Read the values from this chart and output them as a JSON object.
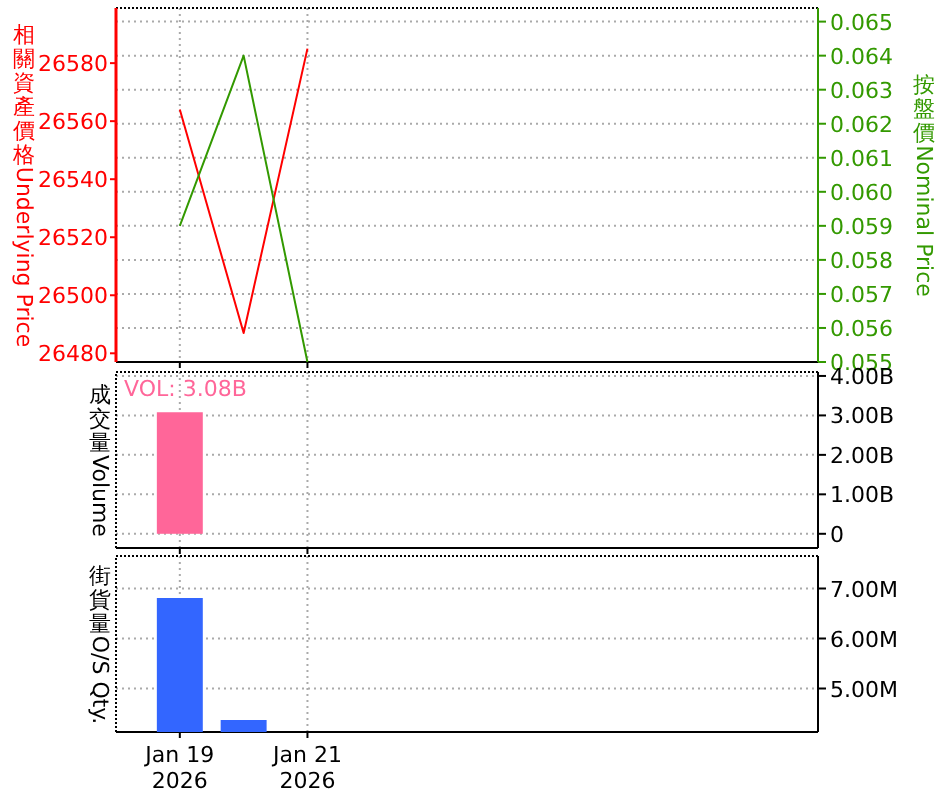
{
  "chart_data": [
    {
      "type": "line",
      "x": [
        "2026-01-19",
        "2026-01-20",
        "2026-01-21"
      ],
      "ylabel": "相關資產價格 Underlying Price",
      "y2label": "按盤價 Nominal Price",
      "series": [
        {
          "color": "#ff0000",
          "values": [
            26564,
            26487,
            26585
          ]
        },
        {
          "color": "#339900",
          "axis": "y2",
          "values": [
            0.059,
            0.064,
            0.055
          ]
        }
      ],
      "xlim": [
        "2026-01-18",
        "2026-01-29"
      ],
      "xticks": [
        "2026-01-19",
        "2026-01-21"
      ],
      "ylim": [
        26477,
        26599
      ],
      "yticks": [
        26480,
        26500,
        26520,
        26540,
        26560,
        26580
      ],
      "y2lim": [
        0.055,
        0.0654
      ],
      "y2ticks": [
        0.055,
        0.056,
        0.057,
        0.058,
        0.059,
        {
          "value": 0.06,
          "label": "0.060"
        },
        0.061,
        0.062,
        0.063,
        0.064,
        0.065
      ],
      "grid": true,
      "tick_labels": "y"
    },
    {
      "type": "bar",
      "x": [
        "2026-01-19"
      ],
      "values": [
        3080000000
      ],
      "color": "#ff6699",
      "ylabel": "成交量Volume",
      "annotations": [
        "VOL: 3.08B"
      ],
      "xlim": [
        "2026-01-18",
        "2026-01-29"
      ],
      "xticks": [
        "2026-01-19",
        "2026-01-21"
      ],
      "ylim": [
        -360000000,
        4100000000
      ],
      "yticks": [
        0,
        {
          "value": 1000000000,
          "label": "1.00B"
        },
        {
          "value": 2000000000,
          "label": "2.00B"
        },
        {
          "value": 3000000000,
          "label": "3.00B"
        },
        {
          "value": 4000000000,
          "label": "4.00B"
        }
      ],
      "grid": true,
      "tick_labels": "y"
    },
    {
      "type": "bar",
      "x": [
        "2026-01-19",
        "2026-01-20"
      ],
      "values": [
        6810000,
        4370000
      ],
      "color": "#3366ff",
      "ylabel": "街貨量O/S Qty.",
      "xlim": [
        "2026-01-18",
        "2026-01-29"
      ],
      "xticks": [
        {
          "value": "2026-01-19",
          "label": "Jan 19 2026"
        },
        {
          "value": "2026-01-21",
          "label": "Jan 21 2026"
        }
      ],
      "ylim": [
        4130000,
        7650000
      ],
      "yticks": [
        {
          "value": 5000000,
          "label": "5.00M"
        },
        {
          "value": 6000000,
          "label": "6.00M"
        },
        {
          "value": 7000000,
          "label": "7.00M"
        }
      ],
      "grid": true
    }
  ]
}
